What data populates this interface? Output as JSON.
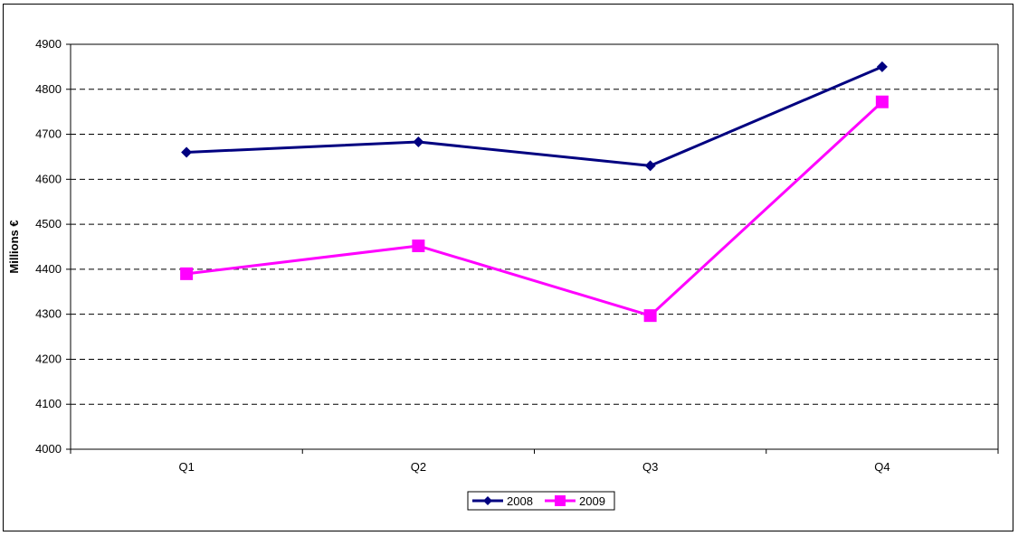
{
  "chart_data": {
    "type": "line",
    "categories": [
      "Q1",
      "Q2",
      "Q3",
      "Q4"
    ],
    "series": [
      {
        "name": "2008",
        "values": [
          4660,
          4683,
          4630,
          4850
        ],
        "color": "#000080",
        "marker": "diamond"
      },
      {
        "name": "2009",
        "values": [
          4390,
          4452,
          4297,
          4772
        ],
        "color": "#FF00FF",
        "marker": "square"
      }
    ],
    "title": "",
    "xlabel": "",
    "ylabel": "Millions €",
    "ylim": [
      4000,
      4900
    ],
    "yticks": [
      4000,
      4100,
      4200,
      4300,
      4400,
      4500,
      4600,
      4700,
      4800,
      4900
    ],
    "grid": "horizontal-dashed",
    "legend_position": "bottom"
  }
}
